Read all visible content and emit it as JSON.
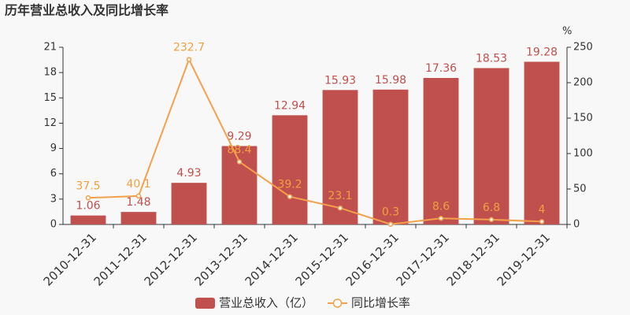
{
  "chart_data": {
    "type": "bar",
    "title": "历年营业总收入及同比增长率",
    "y2label": "%",
    "categories": [
      "2010-12-31",
      "2011-12-31",
      "2012-12-31",
      "2013-12-31",
      "2014-12-31",
      "2015-12-31",
      "2016-12-31",
      "2017-12-31",
      "2018-12-31",
      "2019-12-31"
    ],
    "series": [
      {
        "name": "营业总收入（亿）",
        "type": "bar",
        "color": "#c0504d",
        "label_color": "#c0504d",
        "values": [
          1.06,
          1.48,
          4.93,
          9.29,
          12.94,
          15.93,
          15.98,
          17.36,
          18.53,
          19.28
        ]
      },
      {
        "name": "同比增长率",
        "type": "line",
        "axis": "y2",
        "color": "#f5a04a",
        "label_color": "#f0a040",
        "values": [
          37.5,
          40.1,
          232.7,
          88.4,
          39.2,
          23.1,
          0.3,
          8.6,
          6.8,
          4
        ]
      }
    ],
    "ylim": [
      0,
      21
    ],
    "yticks": [
      0,
      3,
      6,
      9,
      12,
      15,
      18,
      21
    ],
    "y2lim": [
      0,
      250
    ],
    "y2ticks": [
      0,
      50,
      100,
      150,
      200,
      250
    ],
    "grid": false,
    "legend": "bottom"
  }
}
